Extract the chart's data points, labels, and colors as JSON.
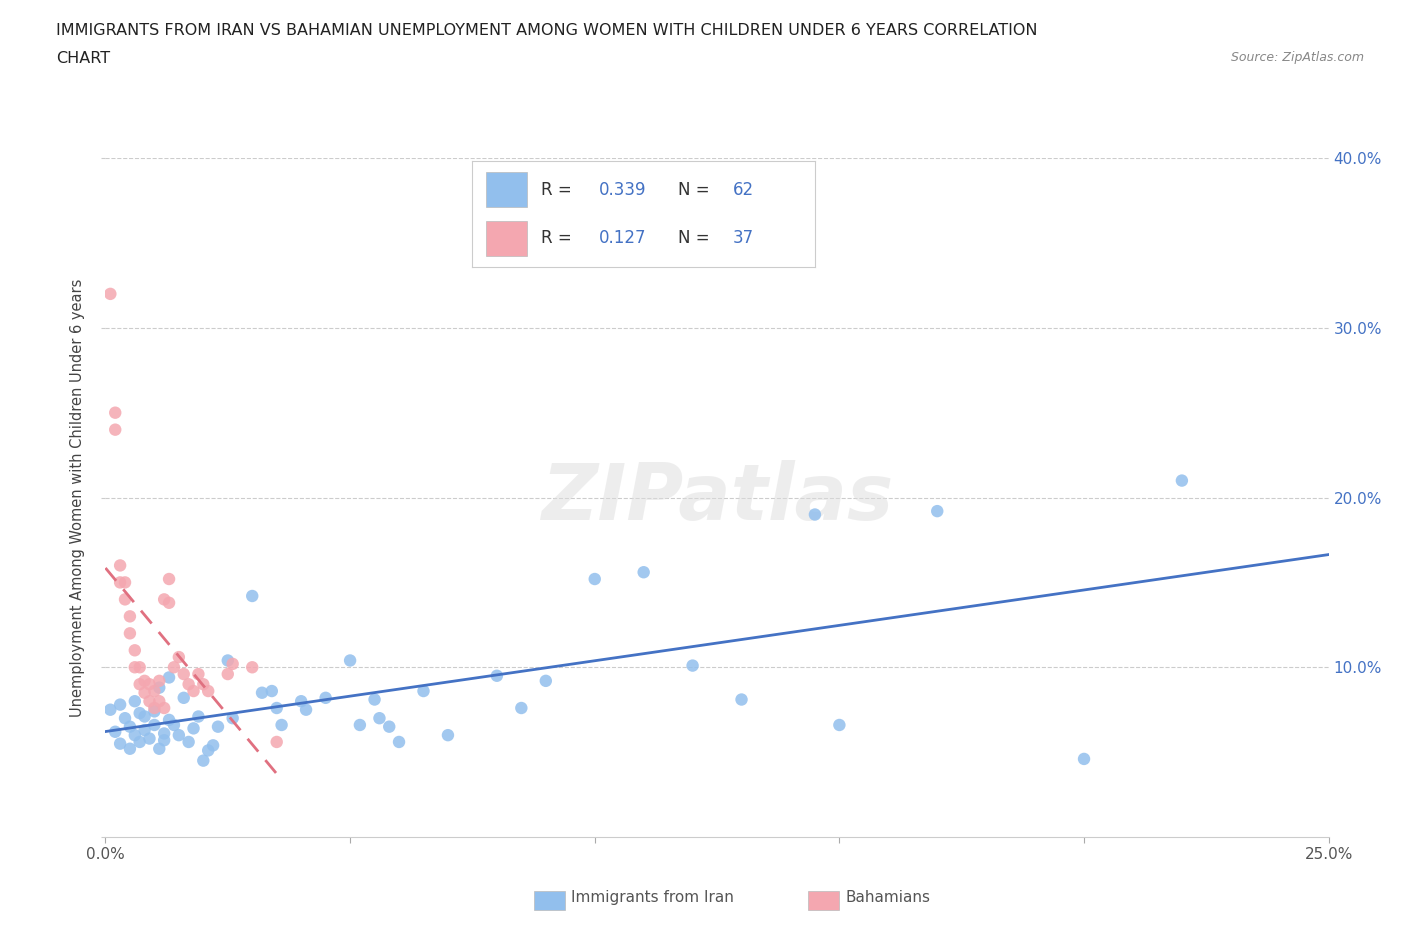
{
  "title_line1": "IMMIGRANTS FROM IRAN VS BAHAMIAN UNEMPLOYMENT AMONG WOMEN WITH CHILDREN UNDER 6 YEARS CORRELATION",
  "title_line2": "CHART",
  "source": "Source: ZipAtlas.com",
  "ylabel": "Unemployment Among Women with Children Under 6 years",
  "xlim": [
    0.0,
    0.25
  ],
  "ylim": [
    0.0,
    0.4
  ],
  "xticks": [
    0.0,
    0.05,
    0.1,
    0.15,
    0.2,
    0.25
  ],
  "yticks": [
    0.0,
    0.1,
    0.2,
    0.3,
    0.4
  ],
  "ytick_labels_right": [
    "",
    "10.0%",
    "20.0%",
    "30.0%",
    "40.0%"
  ],
  "xtick_labels": [
    "0.0%",
    "",
    "",
    "",
    "",
    "25.0%"
  ],
  "blue_color": "#92BFED",
  "pink_color": "#F4A7B0",
  "blue_line_color": "#4472C4",
  "pink_line_color": "#E07080",
  "R_blue": 0.339,
  "N_blue": 62,
  "R_pink": 0.127,
  "N_pink": 37,
  "watermark": "ZIPatlas",
  "blue_scatter": [
    [
      0.001,
      0.075
    ],
    [
      0.002,
      0.062
    ],
    [
      0.003,
      0.078
    ],
    [
      0.003,
      0.055
    ],
    [
      0.004,
      0.07
    ],
    [
      0.005,
      0.065
    ],
    [
      0.005,
      0.052
    ],
    [
      0.006,
      0.06
    ],
    [
      0.006,
      0.08
    ],
    [
      0.007,
      0.073
    ],
    [
      0.007,
      0.056
    ],
    [
      0.008,
      0.063
    ],
    [
      0.008,
      0.071
    ],
    [
      0.009,
      0.058
    ],
    [
      0.01,
      0.074
    ],
    [
      0.01,
      0.066
    ],
    [
      0.011,
      0.052
    ],
    [
      0.011,
      0.088
    ],
    [
      0.012,
      0.061
    ],
    [
      0.012,
      0.057
    ],
    [
      0.013,
      0.069
    ],
    [
      0.013,
      0.094
    ],
    [
      0.014,
      0.066
    ],
    [
      0.015,
      0.06
    ],
    [
      0.016,
      0.082
    ],
    [
      0.017,
      0.056
    ],
    [
      0.018,
      0.064
    ],
    [
      0.019,
      0.071
    ],
    [
      0.02,
      0.045
    ],
    [
      0.021,
      0.051
    ],
    [
      0.022,
      0.054
    ],
    [
      0.023,
      0.065
    ],
    [
      0.025,
      0.104
    ],
    [
      0.026,
      0.07
    ],
    [
      0.03,
      0.142
    ],
    [
      0.032,
      0.085
    ],
    [
      0.034,
      0.086
    ],
    [
      0.035,
      0.076
    ],
    [
      0.036,
      0.066
    ],
    [
      0.04,
      0.08
    ],
    [
      0.041,
      0.075
    ],
    [
      0.045,
      0.082
    ],
    [
      0.05,
      0.104
    ],
    [
      0.052,
      0.066
    ],
    [
      0.055,
      0.081
    ],
    [
      0.056,
      0.07
    ],
    [
      0.058,
      0.065
    ],
    [
      0.06,
      0.056
    ],
    [
      0.065,
      0.086
    ],
    [
      0.07,
      0.06
    ],
    [
      0.08,
      0.095
    ],
    [
      0.085,
      0.076
    ],
    [
      0.09,
      0.092
    ],
    [
      0.1,
      0.152
    ],
    [
      0.11,
      0.156
    ],
    [
      0.12,
      0.101
    ],
    [
      0.13,
      0.081
    ],
    [
      0.145,
      0.19
    ],
    [
      0.15,
      0.066
    ],
    [
      0.17,
      0.192
    ],
    [
      0.2,
      0.046
    ],
    [
      0.22,
      0.21
    ]
  ],
  "pink_scatter": [
    [
      0.001,
      0.32
    ],
    [
      0.002,
      0.25
    ],
    [
      0.002,
      0.24
    ],
    [
      0.003,
      0.15
    ],
    [
      0.003,
      0.16
    ],
    [
      0.004,
      0.14
    ],
    [
      0.004,
      0.15
    ],
    [
      0.005,
      0.12
    ],
    [
      0.005,
      0.13
    ],
    [
      0.006,
      0.1
    ],
    [
      0.006,
      0.11
    ],
    [
      0.007,
      0.09
    ],
    [
      0.007,
      0.1
    ],
    [
      0.008,
      0.085
    ],
    [
      0.008,
      0.092
    ],
    [
      0.009,
      0.08
    ],
    [
      0.009,
      0.09
    ],
    [
      0.01,
      0.076
    ],
    [
      0.01,
      0.086
    ],
    [
      0.011,
      0.08
    ],
    [
      0.011,
      0.092
    ],
    [
      0.012,
      0.076
    ],
    [
      0.012,
      0.14
    ],
    [
      0.013,
      0.138
    ],
    [
      0.013,
      0.152
    ],
    [
      0.014,
      0.1
    ],
    [
      0.015,
      0.106
    ],
    [
      0.016,
      0.096
    ],
    [
      0.017,
      0.09
    ],
    [
      0.018,
      0.086
    ],
    [
      0.019,
      0.096
    ],
    [
      0.02,
      0.09
    ],
    [
      0.021,
      0.086
    ],
    [
      0.025,
      0.096
    ],
    [
      0.026,
      0.102
    ],
    [
      0.03,
      0.1
    ],
    [
      0.035,
      0.056
    ]
  ]
}
